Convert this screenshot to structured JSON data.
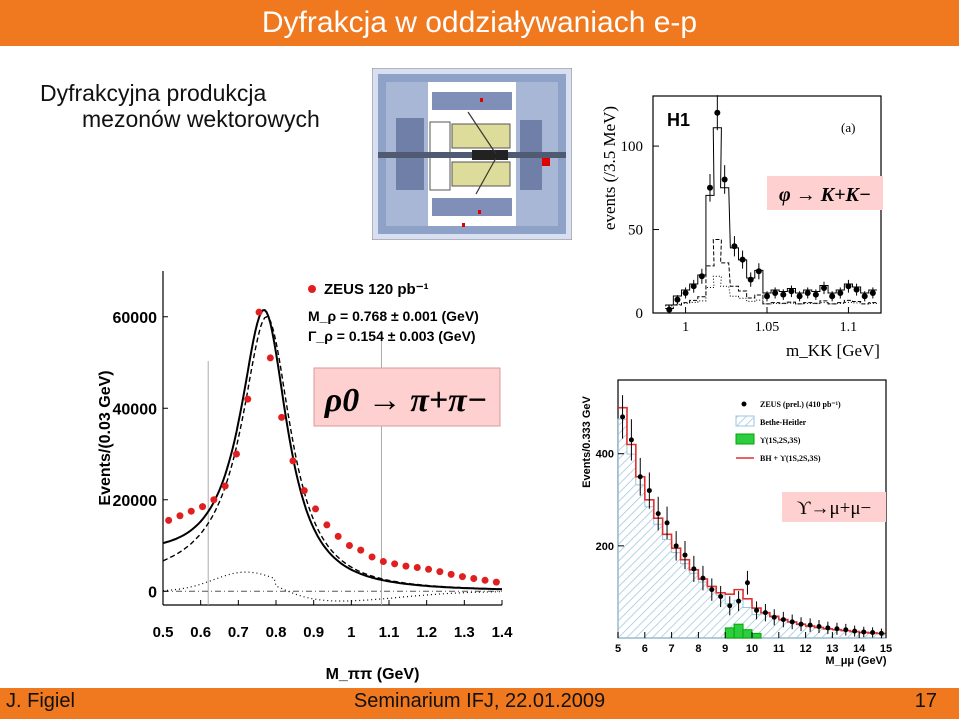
{
  "slide": {
    "title": "Dyfrakcja w oddziaływaniach e-p",
    "subtitle_line1": "Dyfrakcyjna produkcja",
    "subtitle_line2": "mezonów wektorowych",
    "footer_author": "J. Figiel",
    "footer_event": "Seminarium IFJ, 22.01.2009",
    "page_number": "17"
  },
  "colors": {
    "accent": "#f0781e",
    "data_points": "#e02020",
    "fit_red": "#e03030",
    "box_pink": "#ffd0d0",
    "green_fill": "#2ecc40",
    "hatch": "#9cc7e0"
  },
  "chart_data": [
    {
      "type": "scatter",
      "title": "",
      "label_box": "ρ0 → π+π−",
      "xlabel": "M_ππ (GeV)",
      "ylabel": "Events/(0.03 GeV)",
      "xlim": [
        0.5,
        1.4
      ],
      "ylim": [
        -3000,
        70000
      ],
      "xticks": [
        "0.5",
        "0.6",
        "0.7",
        "0.8",
        "0.9",
        "1",
        "1.1",
        "1.2",
        "1.3",
        "1.4"
      ],
      "yticks": [
        "0",
        "20000",
        "40000",
        "60000"
      ],
      "legend": [
        {
          "marker": "dot",
          "text": "ZEUS 120 pb⁻¹"
        },
        {
          "text": "M_ρ = 0.768 ± 0.001 (GeV)"
        },
        {
          "text": "Γ_ρ = 0.154 ± 0.003 (GeV)"
        }
      ],
      "series": [
        {
          "name": "ZEUS 120 pb⁻¹",
          "x": [
            0.515,
            0.545,
            0.575,
            0.605,
            0.635,
            0.665,
            0.695,
            0.725,
            0.755,
            0.785,
            0.815,
            0.845,
            0.875,
            0.905,
            0.935,
            0.965,
            0.995,
            1.025,
            1.055,
            1.085,
            1.115,
            1.145,
            1.175,
            1.205,
            1.235,
            1.265,
            1.295,
            1.325,
            1.355,
            1.385
          ],
          "y": [
            15500,
            16500,
            17500,
            18500,
            20000,
            23000,
            30000,
            42000,
            61000,
            51000,
            38000,
            28500,
            22000,
            18000,
            14500,
            12000,
            10000,
            9000,
            7500,
            6500,
            6000,
            5500,
            5200,
            4800,
            4300,
            3700,
            3200,
            2800,
            2400,
            2000
          ]
        }
      ],
      "curves": [
        "total fit (solid)",
        "resonant (dashed)",
        "interference (dotted)",
        "background (dash-dot)"
      ]
    },
    {
      "type": "line",
      "title": "H1",
      "panel_label": "(a)",
      "label_box": "φ → K+K−",
      "xlabel": "m_KK [GeV]",
      "ylabel": "events (/3.5 MeV)",
      "xlim": [
        0.98,
        1.12
      ],
      "ylim": [
        0,
        130
      ],
      "xticks": [
        "1",
        "1.05",
        "1.1"
      ],
      "yticks": [
        "0",
        "50",
        "100"
      ],
      "series": [
        {
          "name": "",
          "x": [
            0.99,
            0.995,
            1.0,
            1.005,
            1.01,
            1.015,
            1.0195,
            1.024,
            1.03,
            1.035,
            1.04,
            1.045,
            1.05,
            1.055,
            1.06,
            1.065,
            1.07,
            1.075,
            1.08,
            1.085,
            1.09,
            1.095,
            1.1,
            1.105,
            1.11,
            1.115
          ],
          "y": [
            2,
            8,
            12,
            16,
            22,
            75,
            120,
            80,
            40,
            32,
            20,
            25,
            10,
            12,
            11,
            13,
            10,
            12,
            11,
            15,
            10,
            12,
            16,
            14,
            10,
            12
          ]
        }
      ]
    },
    {
      "type": "bar",
      "title": "",
      "label_box": "ϒ→μ+μ−",
      "xlabel": "M_μμ (GeV)",
      "ylabel": "Events/0.333 GeV",
      "xlim": [
        5,
        15
      ],
      "ylim": [
        0,
        560
      ],
      "xticks": [
        "5",
        "6",
        "7",
        "8",
        "9",
        "10",
        "11",
        "12",
        "13",
        "14",
        "15"
      ],
      "yticks": [
        "200",
        "400"
      ],
      "legend": [
        {
          "marker": "dot",
          "text": "ZEUS (prel.) (410 pb⁻¹)"
        },
        {
          "marker": "hatch",
          "text": "Bethe-Heitler"
        },
        {
          "marker": "green",
          "text": "ϒ(1S,2S,3S)"
        },
        {
          "marker": "red-line",
          "text": "BH + ϒ(1S,2S,3S)"
        }
      ],
      "series": [
        {
          "name": "ZEUS (prel.) (410 pb⁻¹)",
          "x": [
            5.17,
            5.5,
            5.83,
            6.17,
            6.5,
            6.83,
            7.17,
            7.5,
            7.83,
            8.17,
            8.5,
            8.83,
            9.17,
            9.5,
            9.83,
            10.17,
            10.5,
            10.83,
            11.17,
            11.5,
            11.83,
            12.17,
            12.5,
            12.83,
            13.17,
            13.5,
            13.83,
            14.17,
            14.5,
            14.83
          ],
          "y": [
            480,
            430,
            350,
            320,
            270,
            250,
            200,
            180,
            150,
            130,
            105,
            90,
            70,
            80,
            120,
            60,
            55,
            45,
            40,
            35,
            30,
            28,
            25,
            22,
            20,
            18,
            15,
            13,
            12,
            10
          ]
        },
        {
          "name": "BH + ϒ(1S,2S,3S)",
          "x": [
            5.17,
            5.5,
            5.83,
            6.17,
            6.5,
            6.83,
            7.17,
            7.5,
            7.83,
            8.17,
            8.5,
            8.83,
            9.17,
            9.5,
            9.83,
            10.17,
            10.5,
            10.83,
            11.17,
            11.5,
            11.83,
            12.17,
            12.5,
            12.83,
            13.17,
            13.5,
            13.83,
            14.17,
            14.5,
            14.83
          ],
          "y": [
            500,
            420,
            350,
            300,
            260,
            225,
            195,
            170,
            148,
            128,
            112,
            98,
            95,
            105,
            85,
            65,
            55,
            47,
            40,
            35,
            30,
            26,
            23,
            20,
            18,
            16,
            14,
            12,
            11,
            10
          ]
        }
      ]
    }
  ]
}
